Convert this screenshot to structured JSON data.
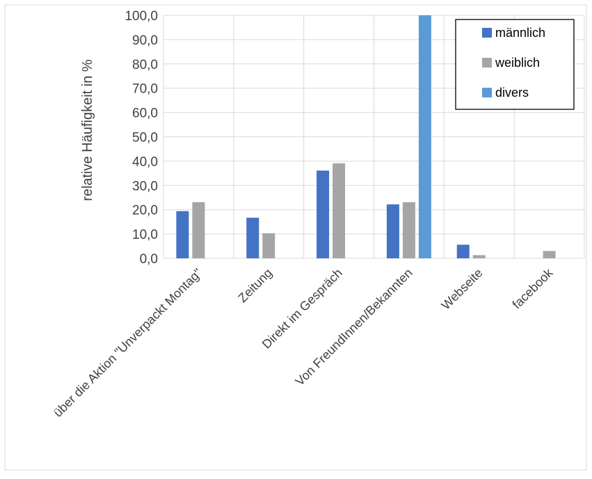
{
  "chart_data": {
    "type": "bar",
    "title": "",
    "xlabel": "",
    "ylabel": "relative Häufigkeit in %",
    "ylim": [
      0,
      100
    ],
    "yticks": [
      "0,0",
      "10,0",
      "20,0",
      "30,0",
      "40,0",
      "50,0",
      "60,0",
      "70,0",
      "80,0",
      "90,0",
      "100,0"
    ],
    "ytick_values": [
      0,
      10,
      20,
      30,
      40,
      50,
      60,
      70,
      80,
      90,
      100
    ],
    "grid": true,
    "legend_position": "top-right",
    "categories": [
      "über die Aktion \"Unverpackt Montag\"",
      "Zeitung",
      "Direkt im Gespräch",
      "Von FreundInnen/Bekannten",
      "Webseite",
      "facebook"
    ],
    "series": [
      {
        "name": "männlich",
        "color": "#4472c4",
        "values": [
          19.4,
          16.7,
          36.1,
          22.2,
          5.6,
          0.0
        ]
      },
      {
        "name": "weiblich",
        "color": "#a5a5a5",
        "values": [
          23.1,
          10.3,
          39.1,
          23.1,
          1.3,
          3.0
        ]
      },
      {
        "name": "divers",
        "color": "#5b9bd5",
        "values": [
          0.0,
          0.0,
          0.0,
          100.0,
          0.0,
          0.0
        ]
      }
    ]
  }
}
